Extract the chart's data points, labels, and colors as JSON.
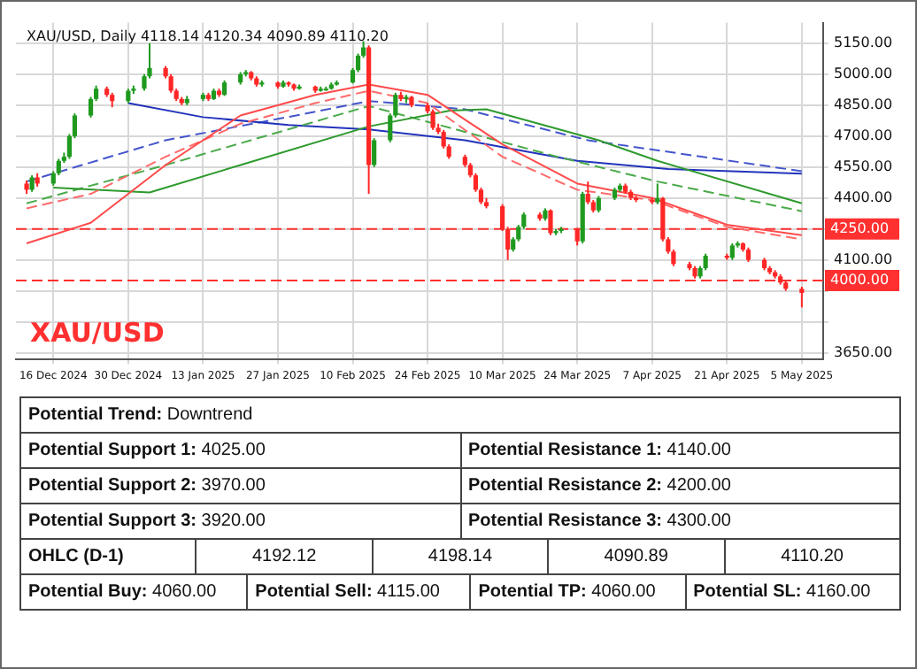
{
  "chart_data": [
    {
      "type": "candlestick",
      "title": "XAU/USD, Daily 4118.14 4120.34 4090.89 4110.20",
      "annotations": [
        "XAU/USD"
      ],
      "x": [
        "2024-12-11",
        "2024-12-12",
        "2024-12-13",
        "2024-12-16",
        "2024-12-17",
        "2024-12-18",
        "2024-12-19",
        "2024-12-20",
        "2024-12-23",
        "2024-12-24",
        "2024-12-26",
        "2024-12-27",
        "2024-12-30",
        "2024-12-31",
        "2025-01-02",
        "2025-01-03",
        "2025-01-06",
        "2025-01-07",
        "2025-01-08",
        "2025-01-09",
        "2025-01-10",
        "2025-01-13",
        "2025-01-14",
        "2025-01-15",
        "2025-01-16",
        "2025-01-17",
        "2025-01-20",
        "2025-01-21",
        "2025-01-22",
        "2025-01-23",
        "2025-01-24",
        "2025-01-27",
        "2025-01-28",
        "2025-01-29",
        "2025-01-30",
        "2025-01-31",
        "2025-02-03",
        "2025-02-04",
        "2025-02-05",
        "2025-02-06",
        "2025-02-07",
        "2025-02-10",
        "2025-02-11",
        "2025-02-12",
        "2025-02-13",
        "2025-02-14",
        "2025-02-17",
        "2025-02-18",
        "2025-02-19",
        "2025-02-20",
        "2025-02-21",
        "2025-02-24",
        "2025-02-25",
        "2025-02-26",
        "2025-02-27",
        "2025-02-28",
        "2025-03-03",
        "2025-03-04",
        "2025-03-05",
        "2025-03-06",
        "2025-03-07",
        "2025-03-10",
        "2025-03-11",
        "2025-03-12",
        "2025-03-13",
        "2025-03-14",
        "2025-03-17",
        "2025-03-18",
        "2025-03-19",
        "2025-03-20",
        "2025-03-21",
        "2025-03-24",
        "2025-03-25",
        "2025-03-26",
        "2025-03-27",
        "2025-03-28",
        "2025-03-31",
        "2025-04-01",
        "2025-04-02",
        "2025-04-03",
        "2025-04-04",
        "2025-04-07",
        "2025-04-08",
        "2025-04-09",
        "2025-04-10",
        "2025-04-11",
        "2025-04-14",
        "2025-04-15",
        "2025-04-16",
        "2025-04-17",
        "2025-04-21",
        "2025-04-22",
        "2025-04-23",
        "2025-04-24",
        "2025-04-25",
        "2025-04-28",
        "2025-04-29",
        "2025-04-30",
        "2025-05-01",
        "2025-05-02",
        "2025-05-05"
      ],
      "ohlc": [
        [
          4470,
          4485,
          4420,
          4440
        ],
        [
          4440,
          4510,
          4430,
          4500
        ],
        [
          4500,
          4520,
          4455,
          4470
        ],
        [
          4470,
          4530,
          4460,
          4520
        ],
        [
          4520,
          4590,
          4510,
          4580
        ],
        [
          4580,
          4620,
          4570,
          4600
        ],
        [
          4600,
          4710,
          4590,
          4700
        ],
        [
          4700,
          4810,
          4690,
          4800
        ],
        [
          4800,
          4890,
          4790,
          4880
        ],
        [
          4880,
          4945,
          4870,
          4930
        ],
        [
          4930,
          4940,
          4890,
          4900
        ],
        [
          4900,
          4910,
          4840,
          4870
        ],
        [
          4870,
          4930,
          4860,
          4920
        ],
        [
          4920,
          4945,
          4905,
          4930
        ],
        [
          4930,
          5000,
          4920,
          4990
        ],
        [
          4990,
          5150,
          4980,
          5030
        ],
        [
          5030,
          5040,
          4980,
          4990
        ],
        [
          4990,
          5000,
          4910,
          4920
        ],
        [
          4920,
          4930,
          4870,
          4880
        ],
        [
          4880,
          4890,
          4850,
          4860
        ],
        [
          4860,
          4895,
          4850,
          4880
        ],
        [
          4880,
          4910,
          4870,
          4900
        ],
        [
          4900,
          4910,
          4870,
          4880
        ],
        [
          4880,
          4930,
          4875,
          4920
        ],
        [
          4920,
          4930,
          4890,
          4900
        ],
        [
          4900,
          4970,
          4895,
          4960
        ],
        [
          4960,
          5010,
          4950,
          5000
        ],
        [
          5000,
          5020,
          4990,
          5010
        ],
        [
          5010,
          5015,
          4970,
          4980
        ],
        [
          4980,
          4990,
          4940,
          4950
        ],
        [
          4950,
          4970,
          4940,
          4960
        ],
        [
          4960,
          4965,
          4930,
          4940
        ],
        [
          4940,
          4970,
          4935,
          4960
        ],
        [
          4960,
          4965,
          4940,
          4950
        ],
        [
          4950,
          4955,
          4920,
          4930
        ],
        [
          4930,
          4950,
          4925,
          4940
        ],
        [
          4940,
          4945,
          4910,
          4920
        ],
        [
          4920,
          4940,
          4915,
          4930
        ],
        [
          4930,
          4940,
          4920,
          4930
        ],
        [
          4930,
          4960,
          4925,
          4950
        ],
        [
          4950,
          4970,
          4945,
          4960
        ],
        [
          4960,
          5030,
          4955,
          5020
        ],
        [
          5020,
          5100,
          5010,
          5090
        ],
        [
          5090,
          5160,
          5080,
          5130
        ],
        [
          5130,
          5140,
          4420,
          4560
        ],
        [
          4560,
          4690,
          4550,
          4680
        ],
        [
          4680,
          4810,
          4670,
          4800
        ],
        [
          4800,
          4910,
          4790,
          4900
        ],
        [
          4900,
          4915,
          4870,
          4880
        ],
        [
          4880,
          4900,
          4860,
          4890
        ],
        [
          4890,
          4895,
          4840,
          4850
        ],
        [
          4850,
          4860,
          4810,
          4820
        ],
        [
          4820,
          4830,
          4730,
          4740
        ],
        [
          4740,
          4760,
          4710,
          4720
        ],
        [
          4720,
          4730,
          4640,
          4650
        ],
        [
          4650,
          4660,
          4590,
          4600
        ],
        [
          4600,
          4610,
          4550,
          4560
        ],
        [
          4560,
          4570,
          4500,
          4510
        ],
        [
          4510,
          4520,
          4430,
          4440
        ],
        [
          4440,
          4450,
          4370,
          4380
        ],
        [
          4380,
          4400,
          4350,
          4360
        ],
        [
          4360,
          4370,
          4240,
          4250
        ],
        [
          4250,
          4260,
          4100,
          4150
        ],
        [
          4150,
          4210,
          4140,
          4200
        ],
        [
          4200,
          4270,
          4190,
          4260
        ],
        [
          4260,
          4330,
          4250,
          4320
        ],
        [
          4320,
          4330,
          4290,
          4300
        ],
        [
          4300,
          4350,
          4290,
          4340
        ],
        [
          4340,
          4345,
          4220,
          4230
        ],
        [
          4230,
          4250,
          4220,
          4240
        ],
        [
          4240,
          4260,
          4230,
          4250
        ],
        [
          4250,
          4255,
          4170,
          4190
        ],
        [
          4190,
          4430,
          4180,
          4420
        ],
        [
          4420,
          4480,
          4370,
          4380
        ],
        [
          4380,
          4390,
          4330,
          4340
        ],
        [
          4340,
          4410,
          4330,
          4400
        ],
        [
          4400,
          4450,
          4390,
          4440
        ],
        [
          4440,
          4470,
          4430,
          4460
        ],
        [
          4460,
          4470,
          4420,
          4430
        ],
        [
          4430,
          4440,
          4390,
          4400
        ],
        [
          4400,
          4410,
          4380,
          4390
        ],
        [
          4390,
          4400,
          4370,
          4380
        ],
        [
          4380,
          4470,
          4370,
          4400
        ],
        [
          4400,
          4405,
          4190,
          4200
        ],
        [
          4200,
          4210,
          4130,
          4140
        ],
        [
          4140,
          4150,
          4070,
          4080
        ],
        [
          4080,
          4090,
          4050,
          4060
        ],
        [
          4060,
          4070,
          4010,
          4020
        ],
        [
          4020,
          4070,
          4010,
          4060
        ],
        [
          4060,
          4130,
          4050,
          4120
        ],
        [
          4120,
          4130,
          4100,
          4110
        ],
        [
          4110,
          4180,
          4100,
          4170
        ],
        [
          4170,
          4190,
          4160,
          4180
        ],
        [
          4180,
          4185,
          4140,
          4150
        ],
        [
          4150,
          4160,
          4090,
          4100
        ],
        [
          4100,
          4110,
          4050,
          4060
        ],
        [
          4060,
          4070,
          4030,
          4040
        ],
        [
          4040,
          4050,
          4010,
          4020
        ],
        [
          4020,
          4030,
          3980,
          3990
        ],
        [
          3990,
          4000,
          3950,
          3960
        ],
        [
          3960,
          3970,
          3870,
          3940
        ]
      ],
      "colors": [
        "#ff2626",
        "#1f9a1f",
        "#ff2626",
        "#1f9a1f",
        "#1f9a1f",
        "#1f9a1f",
        "#1f9a1f",
        "#1f9a1f",
        "#1f9a1f",
        "#1f9a1f",
        "#ff2626",
        "#ff2626",
        "#1f9a1f",
        "#1f9a1f",
        "#1f9a1f",
        "#1f9a1f",
        "#ff2626",
        "#ff2626",
        "#ff2626",
        "#ff2626",
        "#1f9a1f",
        "#1f9a1f",
        "#ff2626",
        "#1f9a1f",
        "#ff2626",
        "#1f9a1f",
        "#1f9a1f",
        "#1f9a1f",
        "#ff2626",
        "#ff2626",
        "#1f9a1f",
        "#ff2626",
        "#1f9a1f",
        "#ff2626",
        "#ff2626",
        "#1f9a1f",
        "#ff2626",
        "#1f9a1f",
        "#1f9a1f",
        "#1f9a1f",
        "#1f9a1f",
        "#1f9a1f",
        "#1f9a1f",
        "#1f9a1f",
        "#ff2626",
        "#1f9a1f",
        "#1f9a1f",
        "#1f9a1f",
        "#ff2626",
        "#1f9a1f",
        "#ff2626",
        "#ff2626",
        "#ff2626",
        "#ff2626",
        "#ff2626",
        "#ff2626",
        "#ff2626",
        "#ff2626",
        "#ff2626",
        "#ff2626",
        "#ff2626",
        "#ff2626",
        "#ff2626",
        "#1f9a1f",
        "#1f9a1f",
        "#1f9a1f",
        "#ff2626",
        "#1f9a1f",
        "#ff2626",
        "#1f9a1f",
        "#1f9a1f",
        "#ff2626",
        "#1f9a1f",
        "#ff2626",
        "#ff2626",
        "#1f9a1f",
        "#1f9a1f",
        "#1f9a1f",
        "#ff2626",
        "#ff2626",
        "#ff2626",
        "#ff2626",
        "#1f9a1f",
        "#ff2626",
        "#ff2626",
        "#ff2626",
        "#ff2626",
        "#ff2626",
        "#1f9a1f",
        "#1f9a1f",
        "#ff2626",
        "#1f9a1f",
        "#1f9a1f",
        "#ff2626",
        "#ff2626",
        "#ff2626",
        "#ff2626",
        "#ff2626",
        "#ff2626",
        "#ff2626",
        "#ff2626"
      ],
      "series": [
        {
          "type": "line",
          "color": "#ff4a4a",
          "line_style": "solid",
          "x": [
            "2024-12-11",
            "2024-12-23",
            "2025-01-06",
            "2025-01-20",
            "2025-02-03",
            "2025-02-13",
            "2025-02-24",
            "2025-03-10",
            "2025-03-24",
            "2025-04-07",
            "2025-04-21",
            "2025-05-05"
          ],
          "values": [
            4180,
            4280,
            4560,
            4800,
            4900,
            4950,
            4900,
            4660,
            4470,
            4400,
            4270,
            4220
          ]
        },
        {
          "type": "line",
          "color": "#ff6a6a",
          "line_style": "dashed",
          "x": [
            "2024-12-11",
            "2024-12-23",
            "2025-01-06",
            "2025-01-20",
            "2025-02-03",
            "2025-02-13",
            "2025-02-24",
            "2025-03-10",
            "2025-03-24",
            "2025-04-07",
            "2025-04-21",
            "2025-05-05"
          ],
          "values": [
            4350,
            4420,
            4600,
            4760,
            4860,
            4920,
            4860,
            4600,
            4440,
            4390,
            4260,
            4200
          ]
        },
        {
          "type": "line",
          "color": "#2e9a2e",
          "line_style": "solid",
          "x": [
            "2024-12-16",
            "2025-01-03",
            "2025-01-20",
            "2025-02-13",
            "2025-02-28",
            "2025-03-07",
            "2025-03-28",
            "2025-04-08",
            "2025-05-05"
          ],
          "values": [
            4450,
            4427,
            4560,
            4747,
            4823,
            4830,
            4680,
            4580,
            4374
          ]
        },
        {
          "type": "line",
          "color": "#4aaa4a",
          "line_style": "dashed",
          "x": [
            "2024-12-11",
            "2025-01-06",
            "2025-02-13",
            "2025-03-20",
            "2025-04-08",
            "2025-05-05"
          ],
          "values": [
            4374,
            4560,
            4846,
            4602,
            4480,
            4336
          ]
        },
        {
          "type": "line",
          "color": "#2233bb",
          "line_style": "solid",
          "x": [
            "2024-12-30",
            "2025-01-13",
            "2025-01-29",
            "2025-02-13",
            "2025-03-03",
            "2025-03-24",
            "2025-04-10",
            "2025-05-05"
          ],
          "values": [
            4860,
            4792,
            4754,
            4732,
            4680,
            4580,
            4541,
            4518
          ]
        },
        {
          "type": "line",
          "color": "#4455cc",
          "line_style": "dashed",
          "x": [
            "2024-12-11",
            "2025-01-06",
            "2025-02-01",
            "2025-02-13",
            "2025-03-03",
            "2025-03-26",
            "2025-05-05"
          ],
          "values": [
            4480,
            4680,
            4808,
            4870,
            4830,
            4680,
            4530
          ]
        }
      ],
      "xlim": [
        "2024-12-09",
        "2025-05-09"
      ],
      "xticks": [
        {
          "value": "2024-12-16",
          "label": "16 Dec 2024"
        },
        {
          "value": "2024-12-30",
          "label": "30 Dec 2024"
        },
        {
          "value": "2025-01-13",
          "label": "13 Jan 2025"
        },
        {
          "value": "2025-01-27",
          "label": "27 Jan 2025"
        },
        {
          "value": "2025-02-10",
          "label": "10 Feb 2025"
        },
        {
          "value": "2025-02-24",
          "label": "24 Feb 2025"
        },
        {
          "value": "2025-03-10",
          "label": "10 Mar 2025"
        },
        {
          "value": "2025-03-24",
          "label": "24 Mar 2025"
        },
        {
          "value": "2025-04-07",
          "label": "7 Apr 2025"
        },
        {
          "value": "2025-04-21",
          "label": "21 Apr 2025"
        },
        {
          "value": "2025-05-05",
          "label": "5 May 2025"
        }
      ],
      "ylim": [
        3620,
        5250
      ],
      "yticks": [
        {
          "value": 5150,
          "label": "5150.00"
        },
        {
          "value": 5000,
          "label": "5000.00"
        },
        {
          "value": 4850,
          "label": "4850.00"
        },
        {
          "value": 4700,
          "label": "4700.00"
        },
        {
          "value": 4550,
          "label": "4550.00"
        },
        {
          "value": 4400,
          "label": "4400.00"
        },
        {
          "value": 4250,
          "label": null
        },
        {
          "value": 4100,
          "label": "4100.00"
        },
        {
          "value": 3950,
          "label": null
        },
        {
          "value": 3800,
          "label": null
        },
        {
          "value": 3650,
          "label": "3650.00"
        }
      ],
      "ref_lines": [
        {
          "axis": "y",
          "value": 4250,
          "label": "4250.00",
          "color": "#ff3030",
          "line_style": "dashed"
        },
        {
          "axis": "y",
          "value": 4000,
          "label": "4000.00",
          "color": "#ff3030",
          "line_style": "dashed"
        }
      ],
      "grid": true,
      "legend": false
    },
    {
      "type": "other",
      "annotations": [
        "Potential Trend: Downtrend",
        "Potential Support 1: 4025.00",
        "Potential Resistance 1: 4140.00",
        "Potential Support 2: 3970.00",
        "Potential Resistance 2: 4200.00",
        "Potential Support 3: 3920.00",
        "Potential Resistance 3: 4300.00",
        "OHLC (D-1)",
        "4192.12",
        "4198.14",
        "4090.89",
        "4110.20",
        "Potential Buy: 4060.00",
        "Potential Sell: 4115.00",
        "Potential TP: 4060.00",
        "Potential SL: 4160.00"
      ]
    }
  ]
}
